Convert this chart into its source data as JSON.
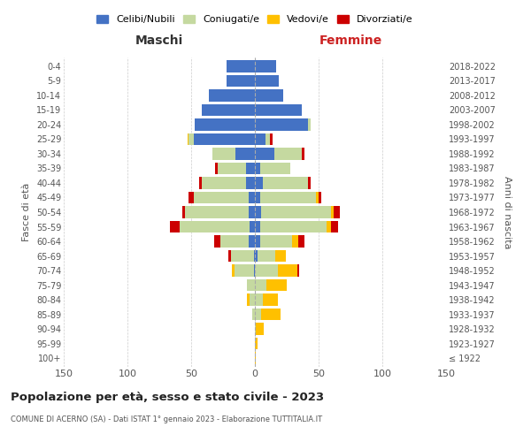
{
  "age_groups": [
    "100+",
    "95-99",
    "90-94",
    "85-89",
    "80-84",
    "75-79",
    "70-74",
    "65-69",
    "60-64",
    "55-59",
    "50-54",
    "45-49",
    "40-44",
    "35-39",
    "30-34",
    "25-29",
    "20-24",
    "15-19",
    "10-14",
    "5-9",
    "0-4"
  ],
  "birth_years": [
    "≤ 1922",
    "1923-1927",
    "1928-1932",
    "1933-1937",
    "1938-1942",
    "1943-1947",
    "1948-1952",
    "1953-1957",
    "1958-1962",
    "1963-1967",
    "1968-1972",
    "1973-1977",
    "1978-1982",
    "1983-1987",
    "1988-1992",
    "1993-1997",
    "1998-2002",
    "2003-2007",
    "2008-2012",
    "2013-2017",
    "2018-2022"
  ],
  "maschi": {
    "celibi": [
      0,
      0,
      0,
      0,
      0,
      0,
      1,
      1,
      5,
      4,
      5,
      5,
      7,
      7,
      15,
      48,
      47,
      42,
      36,
      22,
      22
    ],
    "coniugati": [
      0,
      0,
      0,
      2,
      4,
      6,
      15,
      18,
      22,
      55,
      50,
      43,
      35,
      22,
      18,
      4,
      0,
      0,
      0,
      0,
      0
    ],
    "vedovi": [
      0,
      0,
      0,
      0,
      2,
      0,
      2,
      0,
      0,
      0,
      0,
      0,
      0,
      0,
      0,
      1,
      0,
      0,
      0,
      0,
      0
    ],
    "divorziati": [
      0,
      0,
      0,
      0,
      0,
      0,
      0,
      2,
      5,
      8,
      2,
      4,
      2,
      2,
      0,
      0,
      0,
      0,
      0,
      0,
      0
    ]
  },
  "femmine": {
    "nubili": [
      0,
      0,
      0,
      0,
      0,
      0,
      0,
      2,
      4,
      4,
      5,
      4,
      6,
      4,
      15,
      8,
      42,
      37,
      22,
      19,
      17
    ],
    "coniugate": [
      0,
      0,
      1,
      5,
      6,
      9,
      18,
      14,
      25,
      52,
      55,
      44,
      36,
      24,
      22,
      4,
      2,
      0,
      0,
      0,
      0
    ],
    "vedove": [
      1,
      2,
      6,
      15,
      12,
      16,
      15,
      8,
      5,
      4,
      2,
      2,
      0,
      0,
      0,
      0,
      0,
      0,
      0,
      0,
      0
    ],
    "divorziate": [
      0,
      0,
      0,
      0,
      0,
      0,
      2,
      0,
      5,
      5,
      5,
      2,
      2,
      0,
      2,
      2,
      0,
      0,
      0,
      0,
      0
    ]
  },
  "colors": {
    "celibi": "#4472c4",
    "coniugati": "#c5d9a0",
    "vedovi": "#ffc000",
    "divorziati": "#cc0000"
  },
  "xlim": 150,
  "title": "Popolazione per età, sesso e stato civile - 2023",
  "subtitle": "COMUNE DI ACERNO (SA) - Dati ISTAT 1° gennaio 2023 - Elaborazione TUTTITALIA.IT",
  "xlabel_left": "Maschi",
  "xlabel_right": "Femmine",
  "ylabel_left": "Fasce di età",
  "ylabel_right": "Anni di nascita",
  "legend_labels": [
    "Celibi/Nubili",
    "Coniugati/e",
    "Vedovi/e",
    "Divorziati/e"
  ],
  "bg_color": "#ffffff",
  "grid_color": "#cccccc"
}
